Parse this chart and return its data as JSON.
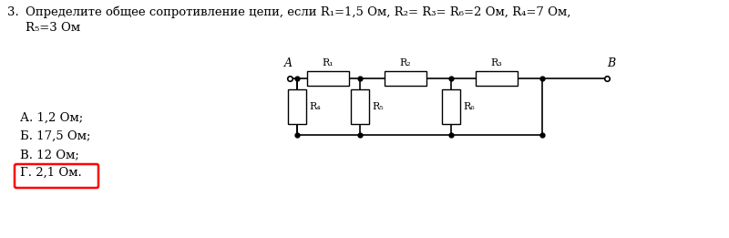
{
  "title_number": "3.",
  "title_text": "Определите общее сопротивление цепи, если R₁=1,5 Ом, R₂= R₃= R₆=2 Ом, R₄=7 Ом,",
  "title_text2": "R₅=3 Ом",
  "answer_a": "А. 1,2 Ом;",
  "answer_b": "Б. 17,5 Ом;",
  "answer_v": "В. 12 Ом;",
  "answer_g": "Г. 2,1 Ом.",
  "bg_color": "#ffffff",
  "text_color": "#000000",
  "circuit_labels_top": [
    "R₁",
    "R₂",
    "R₃"
  ],
  "circuit_labels_bot": [
    "R₄",
    "R₅",
    "R₆"
  ],
  "node_label_left": "A",
  "node_label_right": "B",
  "font_size_title": 9.5,
  "font_size_answers": 9.5,
  "font_size_circuit": 8
}
